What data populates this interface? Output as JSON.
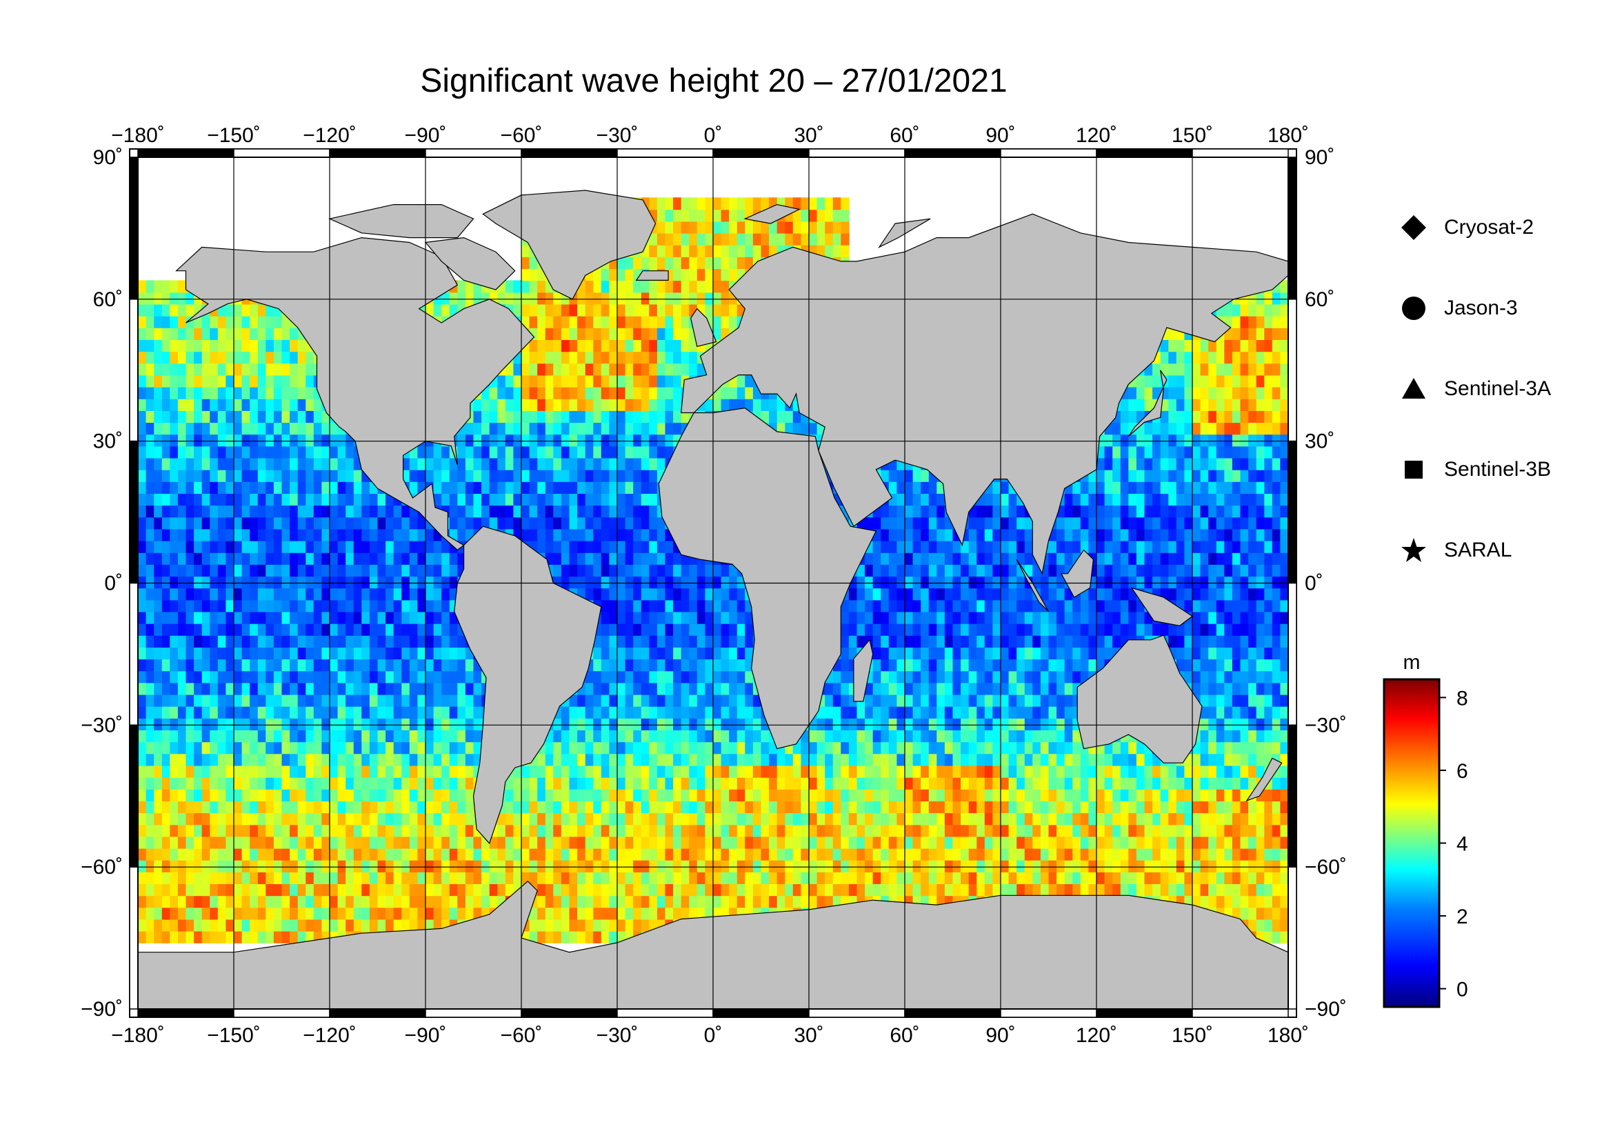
{
  "title": "Significant wave height 20 – 27/01/2021",
  "lon_ticks": [
    "−180˚",
    "−150˚",
    "−120˚",
    "−90˚",
    "−60˚",
    "−30˚",
    "0˚",
    "30˚",
    "60˚",
    "90˚",
    "120˚",
    "150˚",
    "180˚"
  ],
  "lat_ticks_left": [
    "90˚",
    "60˚",
    "30˚",
    "0˚",
    "−30˚",
    "−60˚",
    "−90˚"
  ],
  "lat_ticks_right": [
    "90˚",
    "60˚",
    "30˚",
    "0˚",
    "−30˚",
    "−60˚",
    "−90˚"
  ],
  "legend": {
    "items": [
      {
        "label": "Cryosat-2",
        "symbol": "diamond"
      },
      {
        "label": "Jason-3",
        "symbol": "circle"
      },
      {
        "label": "Sentinel-3A",
        "symbol": "triangle"
      },
      {
        "label": "Sentinel-3B",
        "symbol": "square"
      },
      {
        "label": "SARAL",
        "symbol": "star"
      }
    ]
  },
  "colorbar": {
    "unit": "m",
    "ticks": [
      "8",
      "6",
      "4",
      "2",
      "0"
    ],
    "range": [
      -0.5,
      8.5
    ],
    "colors": [
      "#00007f",
      "#0000ff",
      "#007fff",
      "#00ffff",
      "#7fff7f",
      "#ffff00",
      "#ff7f00",
      "#ff0000",
      "#7f0000"
    ]
  },
  "colors": {
    "land": "#c0c0c0",
    "ice": "#ffffff",
    "frame": "#000000"
  },
  "chart_data": {
    "type": "heatmap",
    "title": "Significant wave height 20 – 27/01/2021",
    "xlim": [
      -180,
      180
    ],
    "ylim": [
      -90,
      90
    ],
    "unit": "m",
    "value_range": [
      0,
      8.5
    ],
    "regions": [
      {
        "lon": [
          -180,
          180
        ],
        "lat": [
          -15,
          15
        ],
        "swh": 2.0
      },
      {
        "lon": [
          -60,
          -20
        ],
        "lat": [
          35,
          60
        ],
        "swh": 6.5
      },
      {
        "lon": [
          -20,
          10
        ],
        "lat": [
          55,
          70
        ],
        "swh": 6.0
      },
      {
        "lon": [
          150,
          180
        ],
        "lat": [
          30,
          55
        ],
        "swh": 6.5
      },
      {
        "lon": [
          -180,
          180
        ],
        "lat": [
          -60,
          -40
        ],
        "swh": 5.0
      },
      {
        "lon": [
          0,
          30
        ],
        "lat": [
          -50,
          -40
        ],
        "swh": 6.5
      },
      {
        "lon": [
          60,
          90
        ],
        "lat": [
          -55,
          -40
        ],
        "swh": 6.5
      },
      {
        "lon": [
          150,
          180
        ],
        "lat": [
          -55,
          -45
        ],
        "swh": 6.5
      },
      {
        "lon": [
          -180,
          -150
        ],
        "lat": [
          -55,
          -40
        ],
        "swh": 5.5
      },
      {
        "lon": [
          -90,
          -70
        ],
        "lat": [
          -55,
          -45
        ],
        "swh": 5.0
      },
      {
        "lon": [
          -180,
          -130
        ],
        "lat": [
          40,
          60
        ],
        "swh": 5.0
      }
    ]
  }
}
